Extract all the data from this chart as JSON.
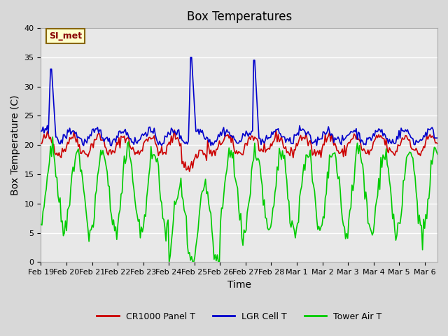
{
  "title": "Box Temperatures",
  "xlabel": "Time",
  "ylabel": "Box Temperature (C)",
  "ylim": [
    0,
    40
  ],
  "yticks": [
    0,
    5,
    10,
    15,
    20,
    25,
    30,
    35,
    40
  ],
  "bg_color": "#e8e8e8",
  "grid_color": "#ffffff",
  "legend_labels": [
    "CR1000 Panel T",
    "LGR Cell T",
    "Tower Air T"
  ],
  "legend_colors": [
    "#cc0000",
    "#0000cc",
    "#00cc00"
  ],
  "annotation_text": "SI_met",
  "annotation_bg": "#ffffcc",
  "annotation_border": "#886600",
  "annotation_text_color": "#880000"
}
